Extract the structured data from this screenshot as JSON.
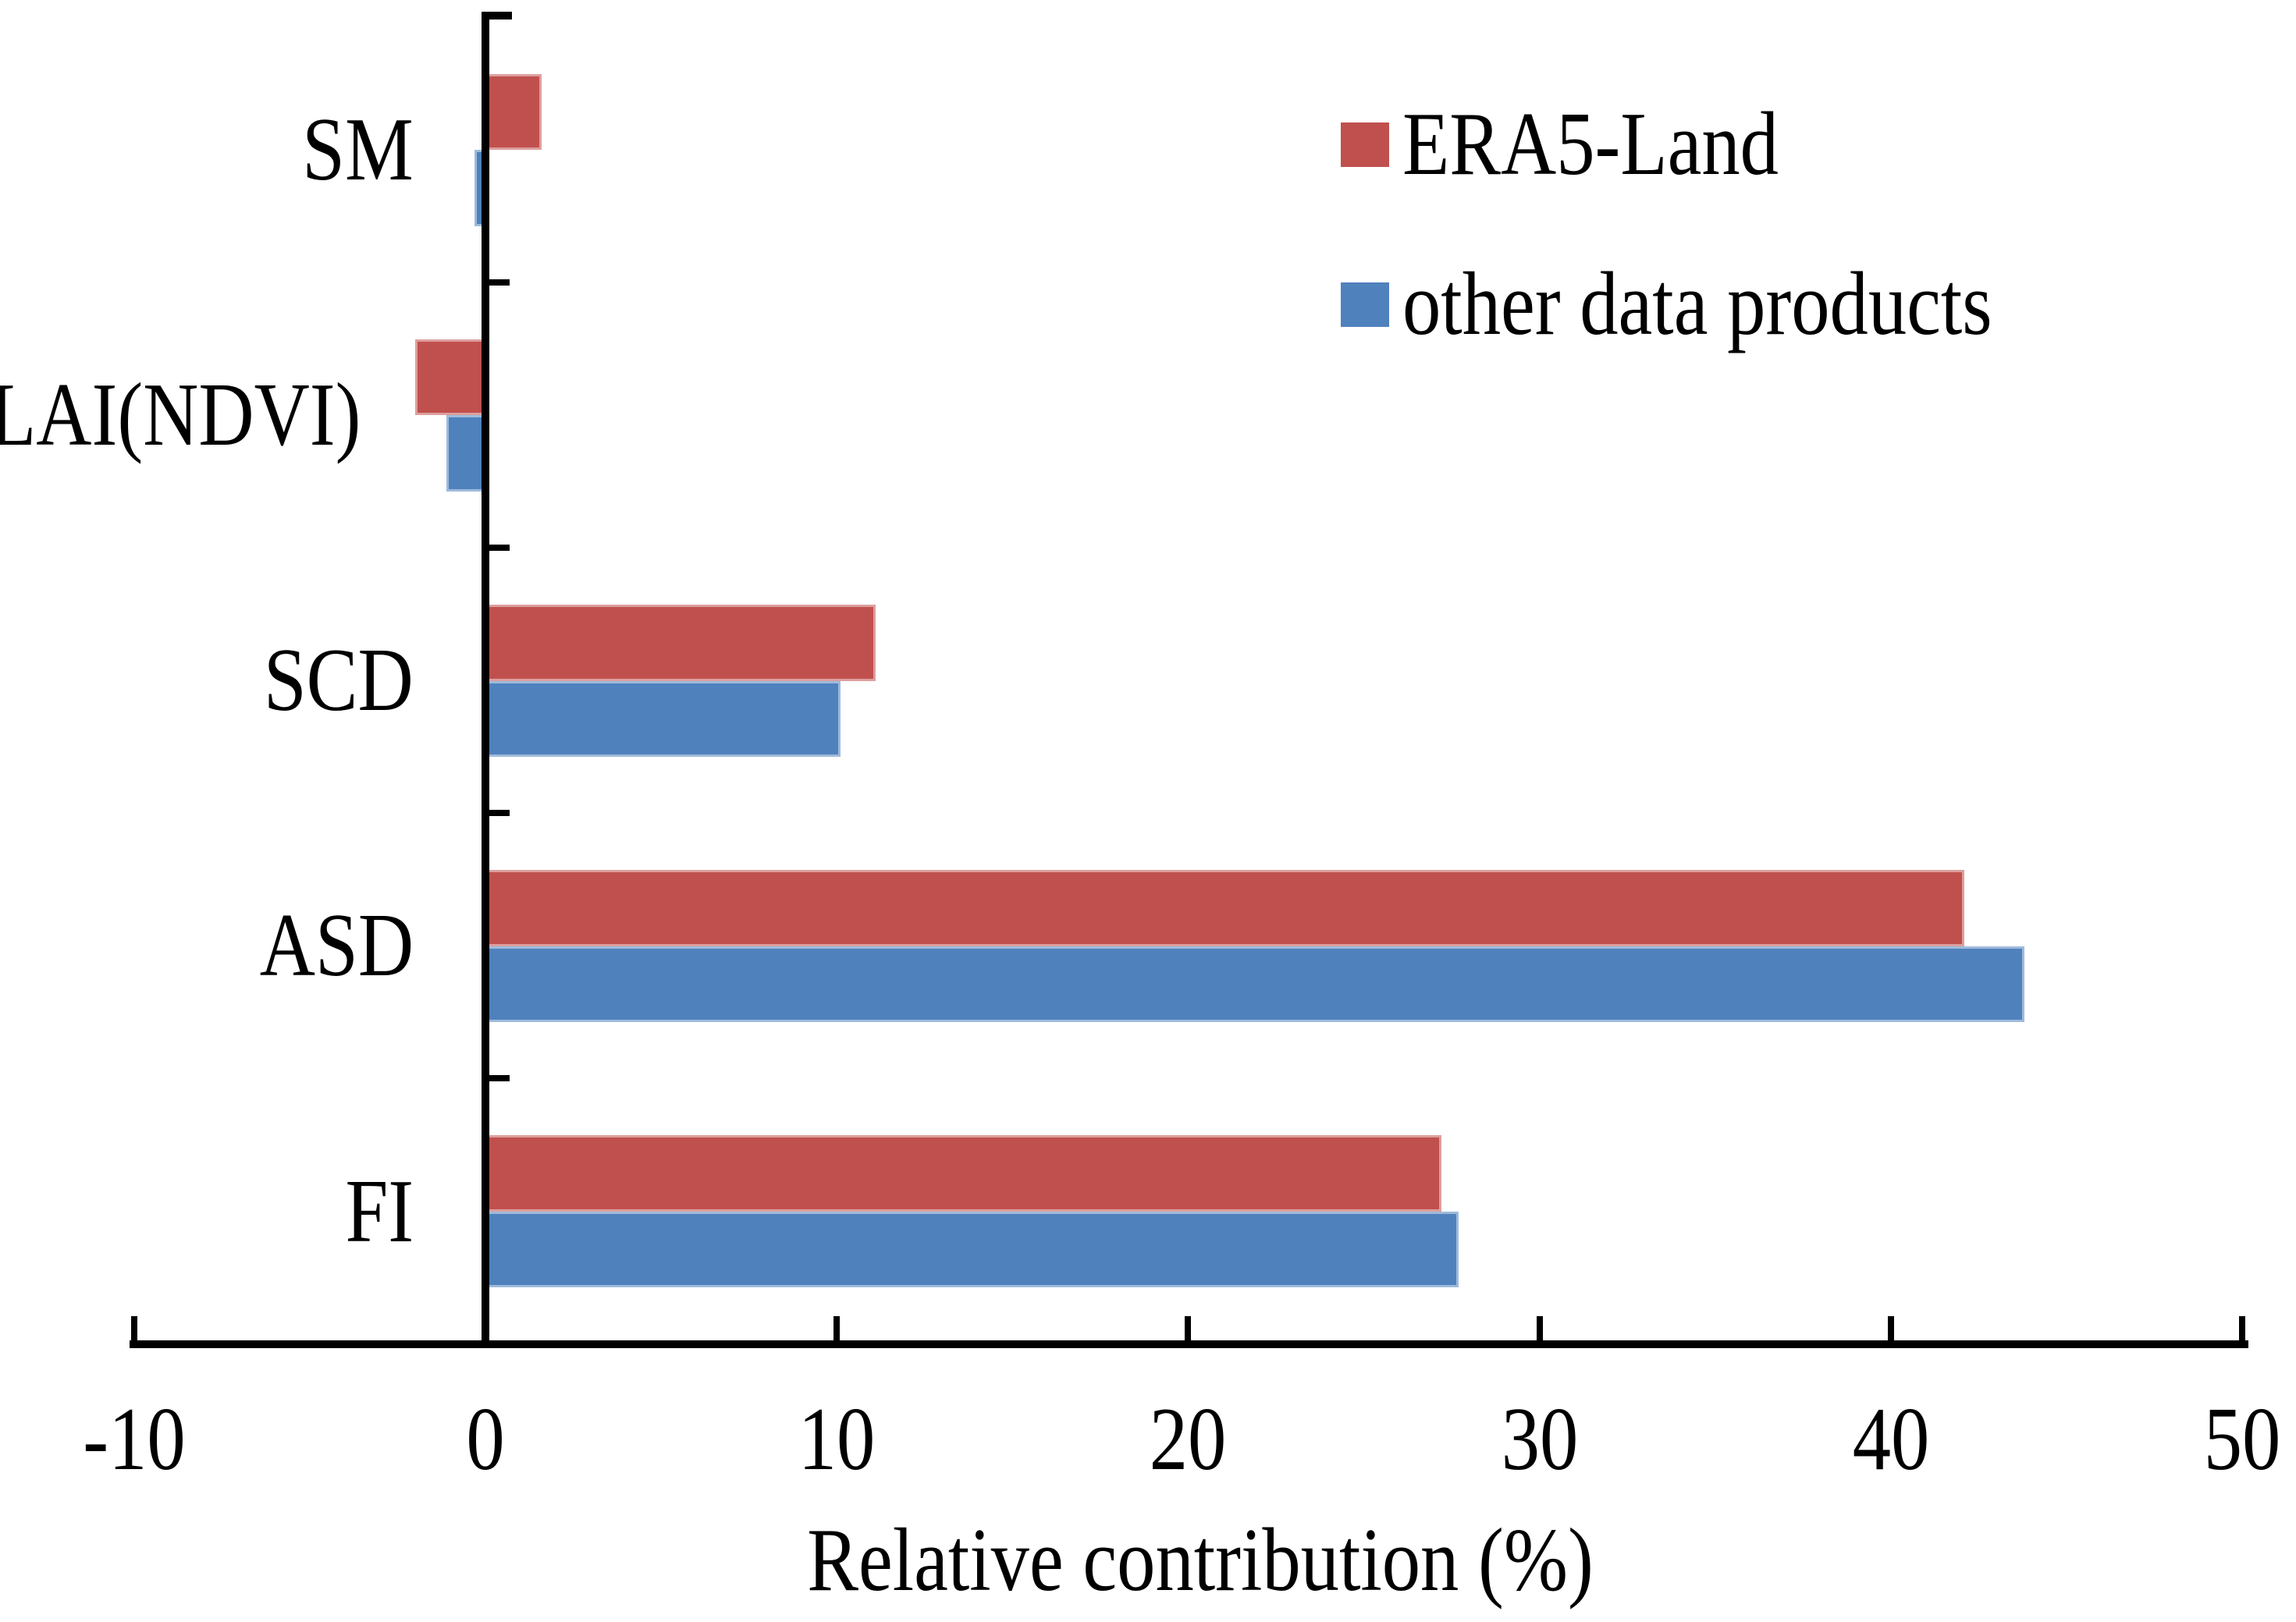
{
  "chart_data": {
    "type": "bar",
    "orientation": "horizontal",
    "title": "",
    "xlabel": "Relative contribution (%)",
    "ylabel": "",
    "categories": [
      "SM",
      "LAI(NDVI)",
      "SCD",
      "ASD",
      "FI"
    ],
    "series": [
      {
        "name": "ERA5-Land",
        "color": "#C0504D",
        "values": [
          1.6,
          -2.0,
          11.1,
          42.1,
          27.2
        ]
      },
      {
        "name": "other data products",
        "color": "#4F81BD",
        "values": [
          -0.3,
          -1.1,
          10.1,
          43.8,
          27.7
        ]
      }
    ],
    "xlim": [
      -10,
      50
    ],
    "xticks": [
      -10,
      0,
      10,
      20,
      30,
      40,
      50
    ],
    "xtick_labels": [
      "-10",
      "0",
      "10",
      "20",
      "30",
      "40",
      "50"
    ],
    "units": "%",
    "grid": false,
    "legend_position": "upper-right",
    "axis_color": "#000000",
    "background_color": "#FFFFFF"
  }
}
